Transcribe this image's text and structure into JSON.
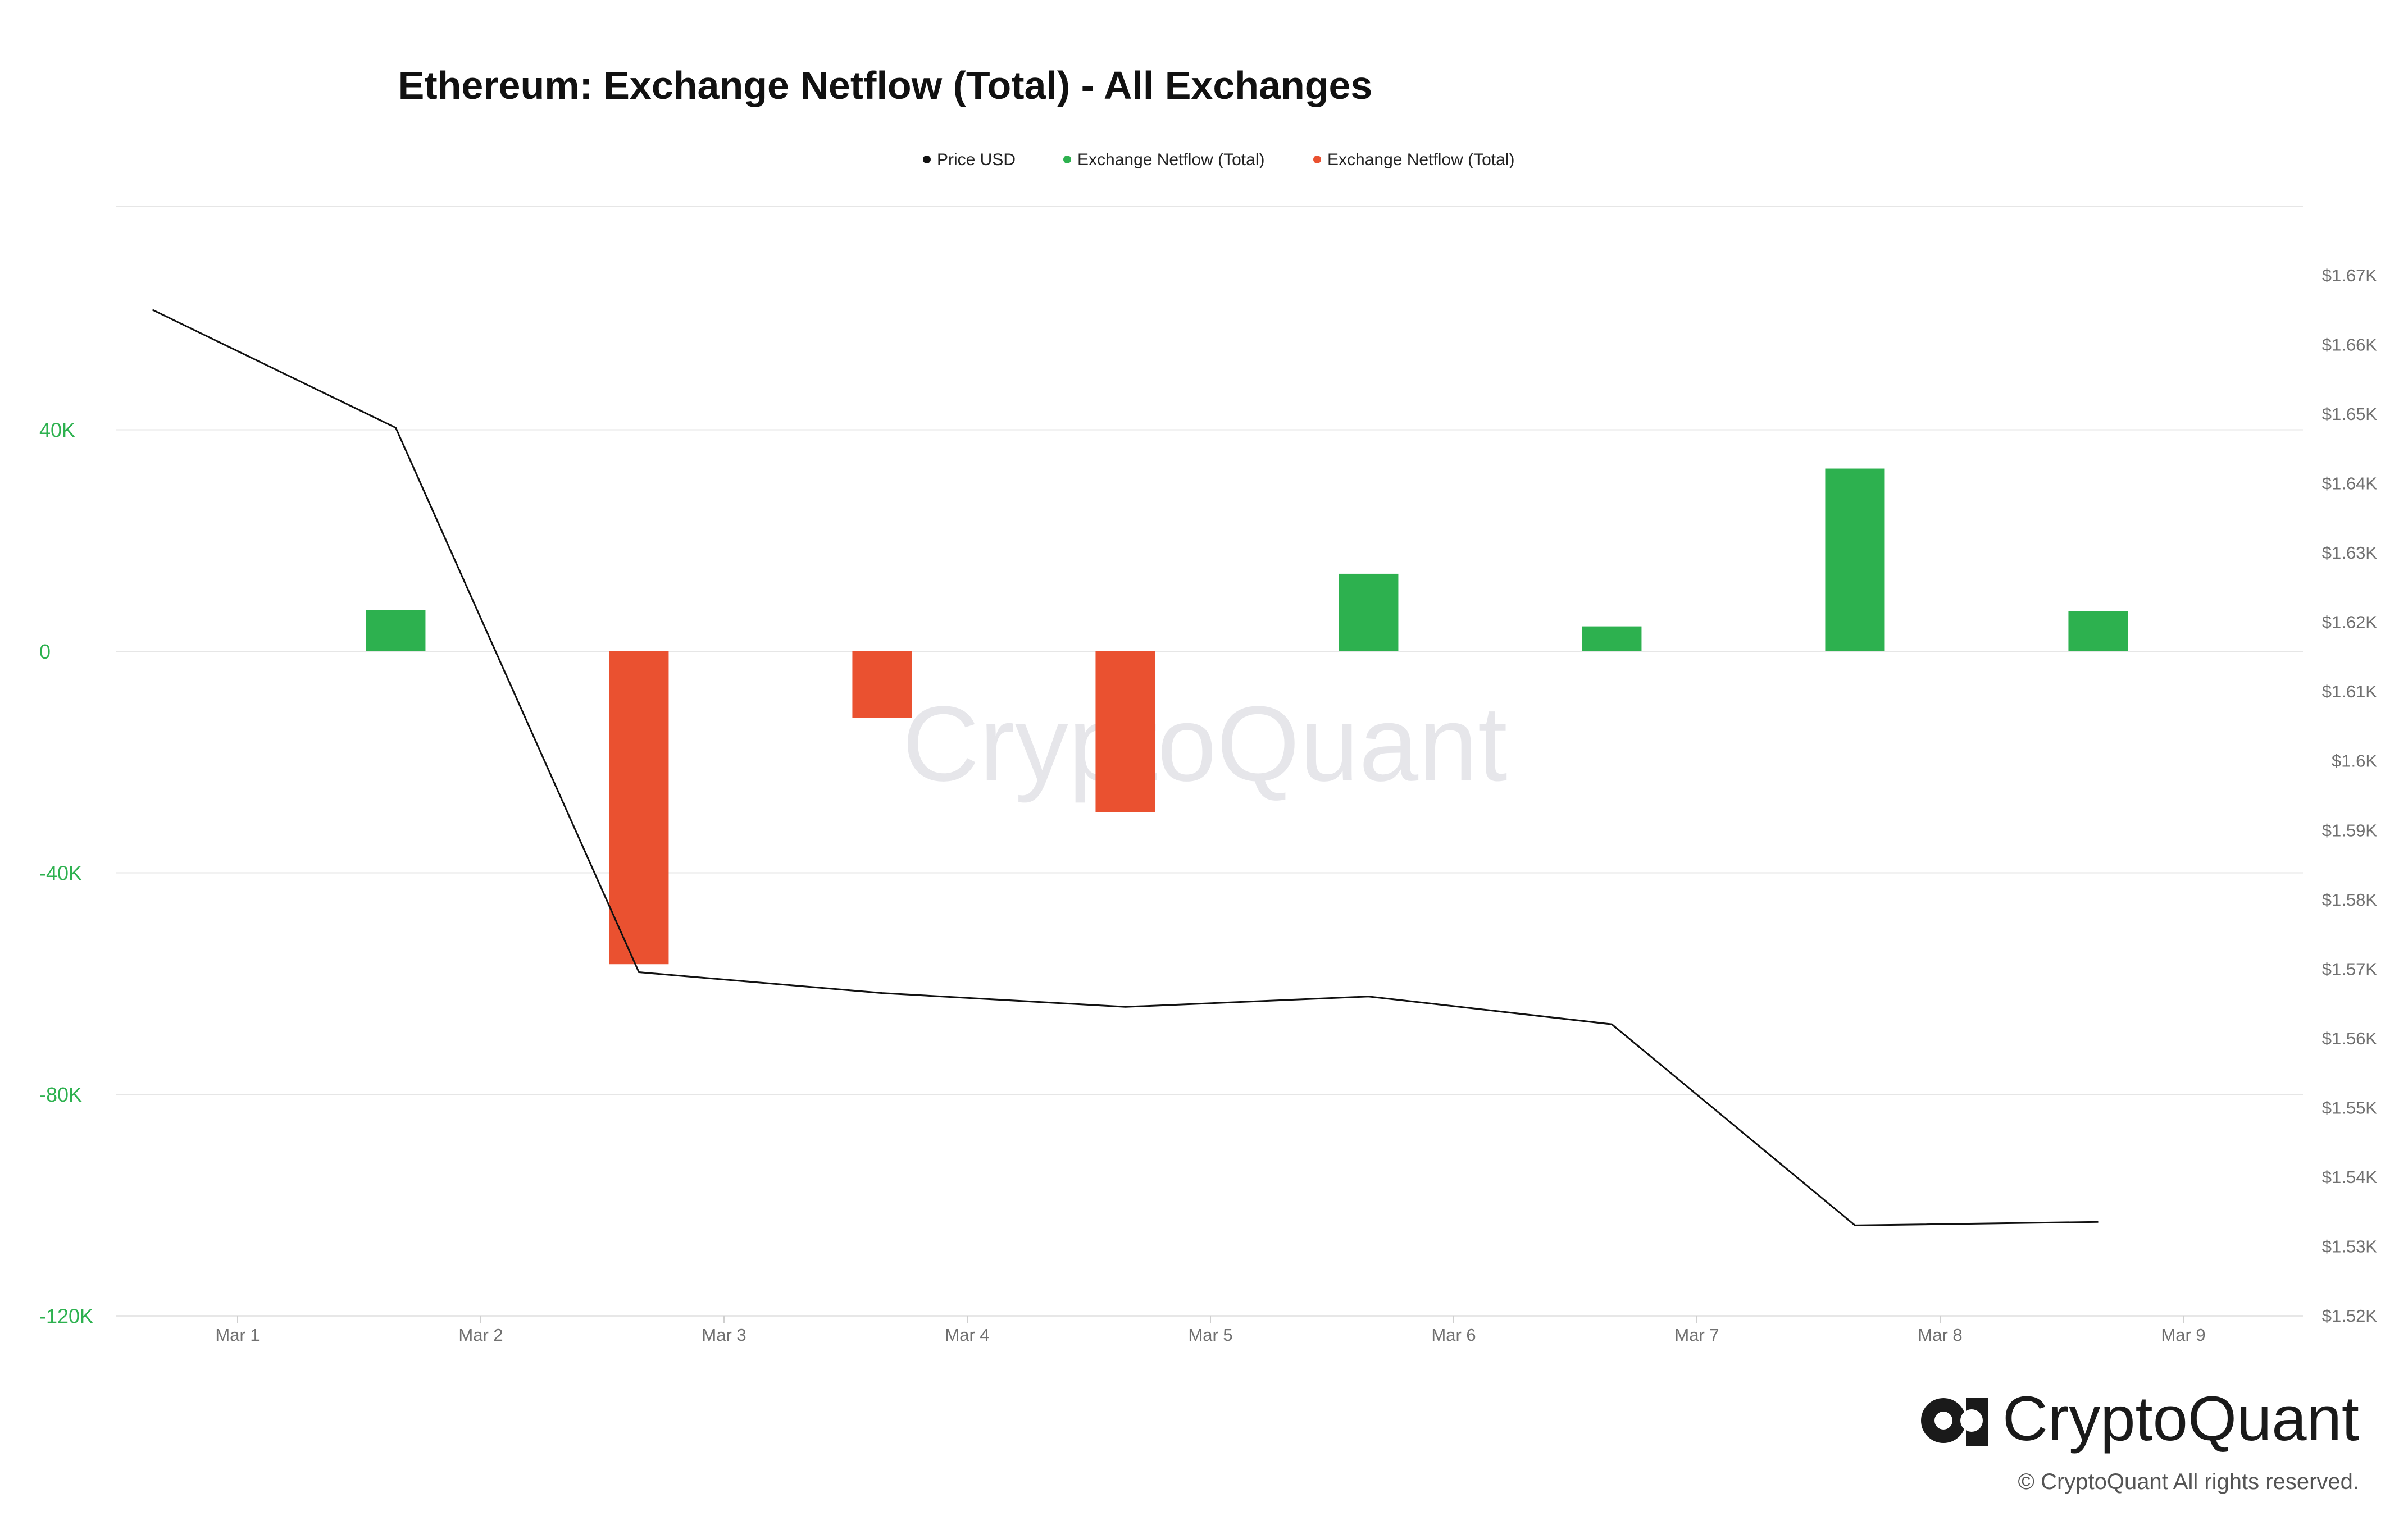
{
  "chart_data": {
    "type": "bar",
    "title": "Ethereum: Exchange Netflow (Total) - All Exchanges",
    "legend": [
      {
        "label": "Price USD",
        "color": "#111111"
      },
      {
        "label": "Exchange Netflow (Total)",
        "color": "#2db14f"
      },
      {
        "label": "Exchange Netflow (Total)",
        "color": "#ea5130"
      }
    ],
    "legend_position": "top-center",
    "x_ticks": [
      "Mar 1",
      "Mar 2",
      "Mar 3",
      "Mar 4",
      "Mar 5",
      "Mar 6",
      "Mar 7",
      "Mar 8",
      "Mar 9"
    ],
    "left_axis": {
      "ticks": [
        "40K",
        "0",
        "-40K",
        "-80K",
        "-120K"
      ],
      "tick_values": [
        40000,
        0,
        -40000,
        -80000,
        -120000
      ],
      "ylim": [
        -120000,
        80000
      ],
      "color": "#2db14f"
    },
    "right_axis": {
      "ticks": [
        "$1.67K",
        "$1.66K",
        "$1.65K",
        "$1.64K",
        "$1.63K",
        "$1.62K",
        "$1.61K",
        "$1.6K",
        "$1.59K",
        "$1.58K",
        "$1.57K",
        "$1.56K",
        "$1.55K",
        "$1.54K",
        "$1.53K",
        "$1.52K"
      ],
      "tick_values": [
        1670,
        1660,
        1650,
        1640,
        1630,
        1620,
        1610,
        1600,
        1590,
        1580,
        1570,
        1560,
        1550,
        1540,
        1530,
        1520
      ],
      "ylim": [
        1520,
        1670
      ]
    },
    "grid": true,
    "positive_color": "#2db14f",
    "negative_color": "#ea5130",
    "netflow_series": {
      "name": "Exchange Netflow (Total)",
      "x": [
        1.65,
        2.65,
        3.65,
        4.65,
        5.65,
        6.65,
        7.65,
        8.65
      ],
      "values": [
        7500,
        -56500,
        -12000,
        -29000,
        14000,
        4500,
        33000,
        7300
      ]
    },
    "price_series": {
      "name": "Price USD",
      "x": [
        0.65,
        1.65,
        2.65,
        3.65,
        4.65,
        5.65,
        6.65,
        7.65,
        8.65
      ],
      "values": [
        1665,
        1648,
        1569.5,
        1566.5,
        1564.5,
        1566,
        1562,
        1533,
        1533.5
      ]
    }
  },
  "watermark": "CryptoQuant",
  "brand": {
    "name": "CryptoQuant",
    "copyright": "© CryptoQuant All rights reserved."
  }
}
